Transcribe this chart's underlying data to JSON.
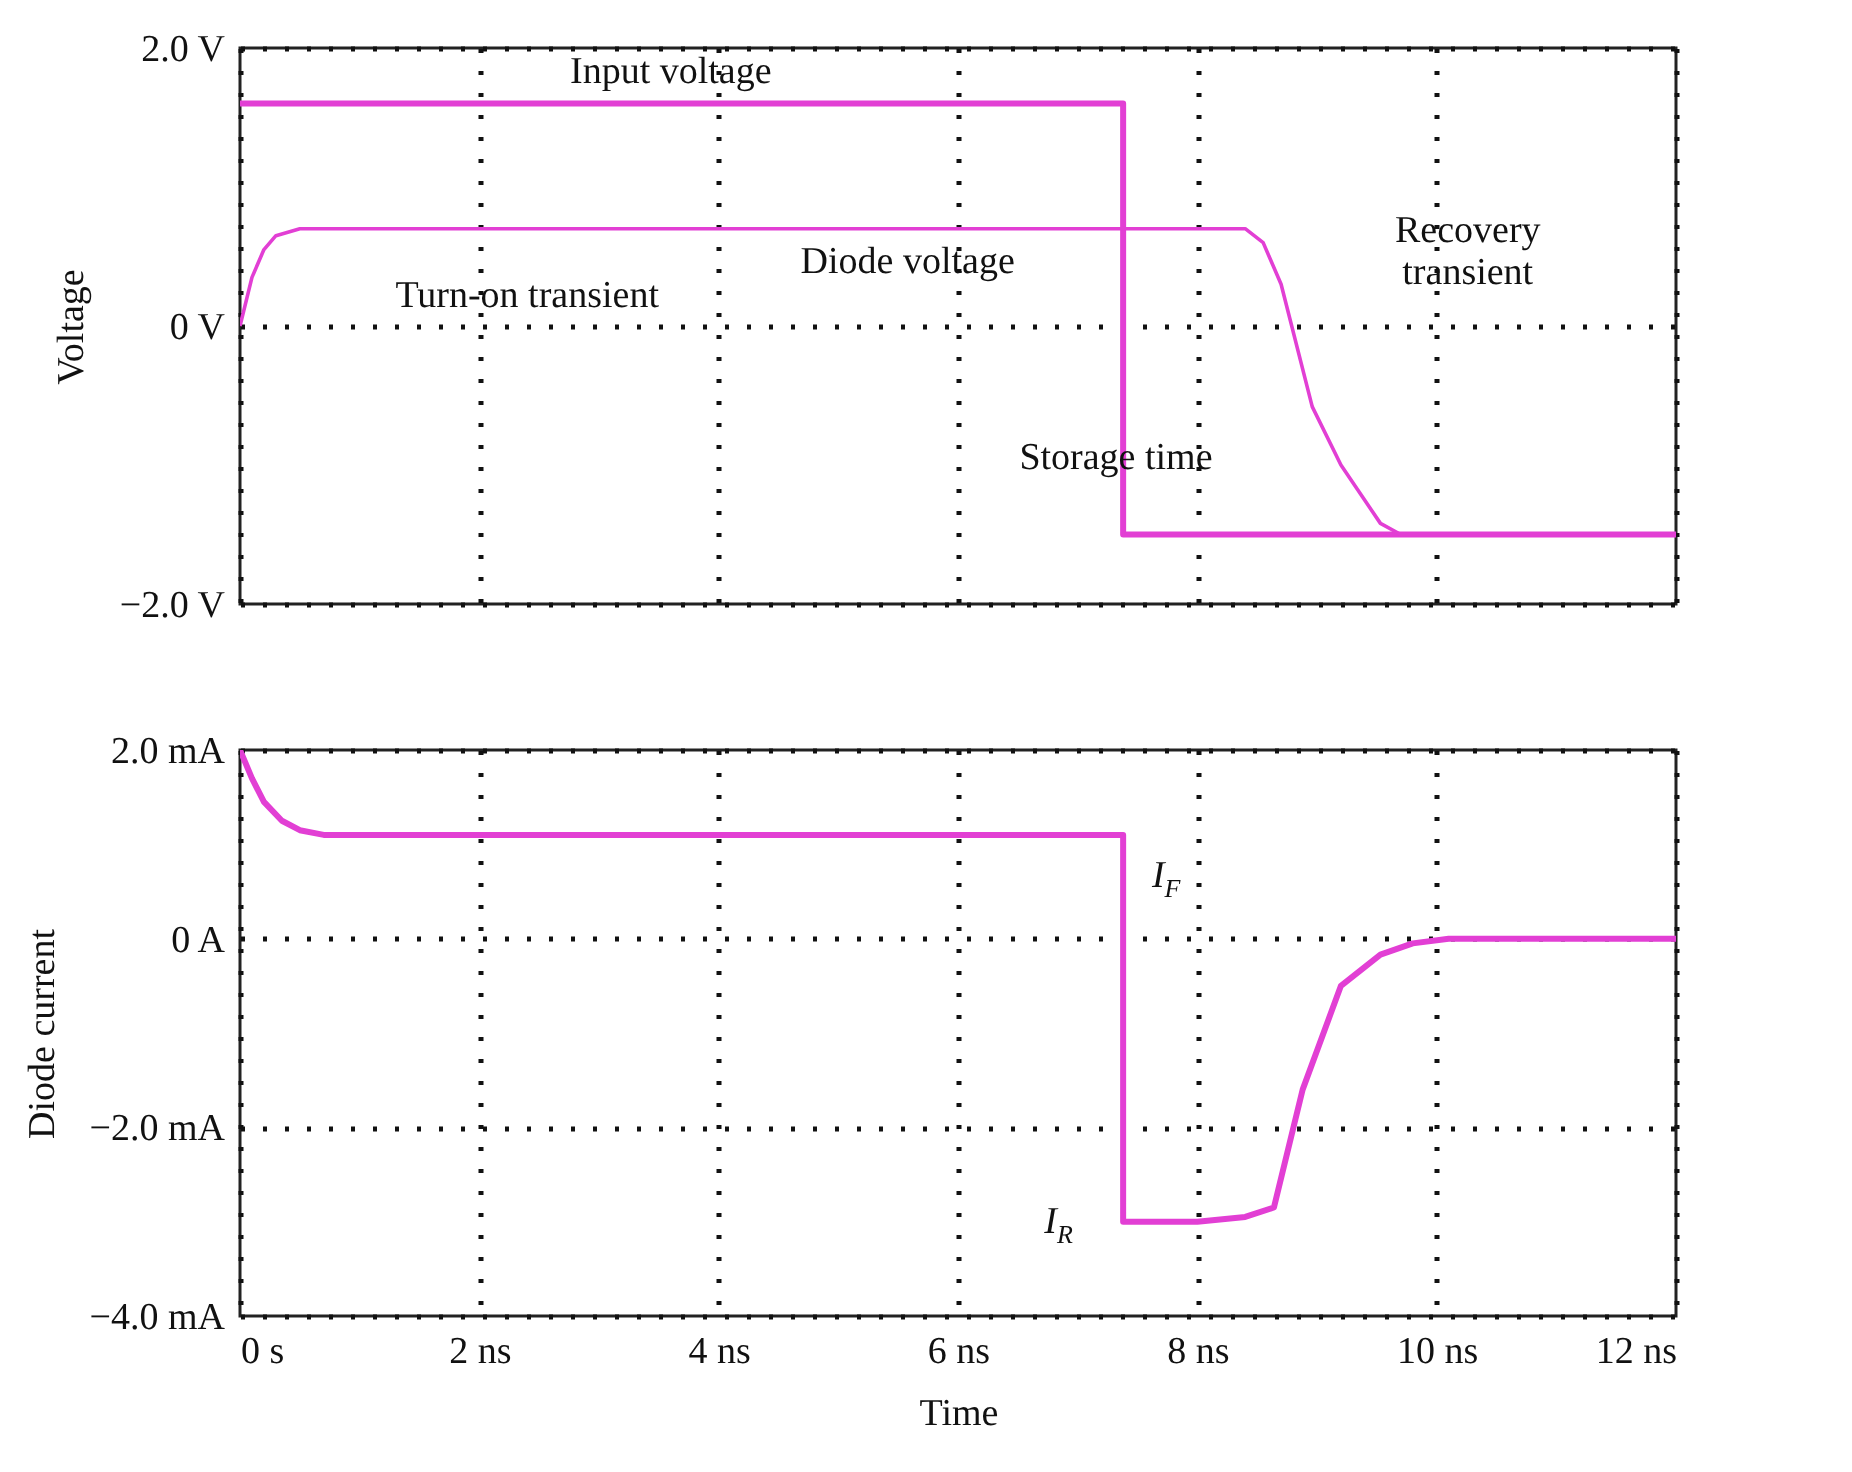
{
  "chart_data": [
    {
      "type": "line",
      "ylabel": "Voltage",
      "xlim": [
        0,
        12
      ],
      "ylim": [
        -2,
        2
      ],
      "xticks": [
        {
          "value": 0,
          "label": null
        },
        {
          "value": 2,
          "label": null
        },
        {
          "value": 4,
          "label": null
        },
        {
          "value": 6,
          "label": null
        },
        {
          "value": 8,
          "label": null
        },
        {
          "value": 10,
          "label": null
        },
        {
          "value": 12,
          "label": null
        }
      ],
      "yticks": [
        {
          "value": -2,
          "label": "−2.0 V"
        },
        {
          "value": 0,
          "label": "0 V"
        },
        {
          "value": 2,
          "label": "2.0 V"
        }
      ],
      "tick_labels": "y",
      "grid": true,
      "line_style": "solid",
      "series": [
        {
          "color": "#e23fd4",
          "x": [
            0,
            7.38,
            7.38,
            12
          ],
          "values": [
            1.6,
            1.6,
            -1.5,
            -1.5
          ]
        },
        {
          "color": "#e23fd4",
          "x": [
            0,
            0.1,
            0.2,
            0.3,
            0.5,
            0.8,
            8.4,
            8.55,
            8.7,
            8.96,
            9.2,
            9.53,
            9.7,
            12
          ],
          "values": [
            0,
            0.35,
            0.55,
            0.65,
            0.7,
            0.7,
            0.7,
            0.6,
            0.3,
            -0.58,
            -1.0,
            -1.42,
            -1.5,
            -1.5
          ]
        }
      ],
      "annotations": [
        "Input voltage",
        "Diode voltage",
        "Turn-on transient",
        "Recovery\ntransient",
        "Storage time"
      ]
    },
    {
      "type": "line",
      "xlabel": "Time",
      "ylabel": "Diode current",
      "xlim": [
        0,
        12
      ],
      "ylim": [
        -4,
        2
      ],
      "xticks": [
        {
          "value": 0,
          "label": "0 s"
        },
        {
          "value": 2,
          "label": "2 ns"
        },
        {
          "value": 4,
          "label": "4 ns"
        },
        {
          "value": 6,
          "label": "6 ns"
        },
        {
          "value": 8,
          "label": "8 ns"
        },
        {
          "value": 10,
          "label": "10 ns"
        },
        {
          "value": 12,
          "label": "12 ns"
        }
      ],
      "yticks": [
        {
          "value": -4,
          "label": "−4.0 mA"
        },
        {
          "value": -2,
          "label": "−2.0 mA"
        },
        {
          "value": 0,
          "label": "0 A"
        },
        {
          "value": 2,
          "label": "2.0 mA"
        }
      ],
      "grid": true,
      "line_style": "solid",
      "series": [
        {
          "color": "#e23fd4",
          "x": [
            0,
            0.1,
            0.2,
            0.35,
            0.5,
            0.7,
            7.38,
            7.38,
            8.0,
            8.4,
            8.64,
            8.88,
            9.2,
            9.53,
            9.8,
            10.1,
            12
          ],
          "values": [
            2.0,
            1.7,
            1.45,
            1.25,
            1.15,
            1.1,
            1.1,
            -3.0,
            -3.0,
            -2.95,
            -2.85,
            -1.6,
            -0.5,
            -0.17,
            -0.05,
            0,
            0
          ]
        }
      ],
      "annotations": [
        "I$_{F}$",
        "I$_{R}$"
      ]
    }
  ]
}
